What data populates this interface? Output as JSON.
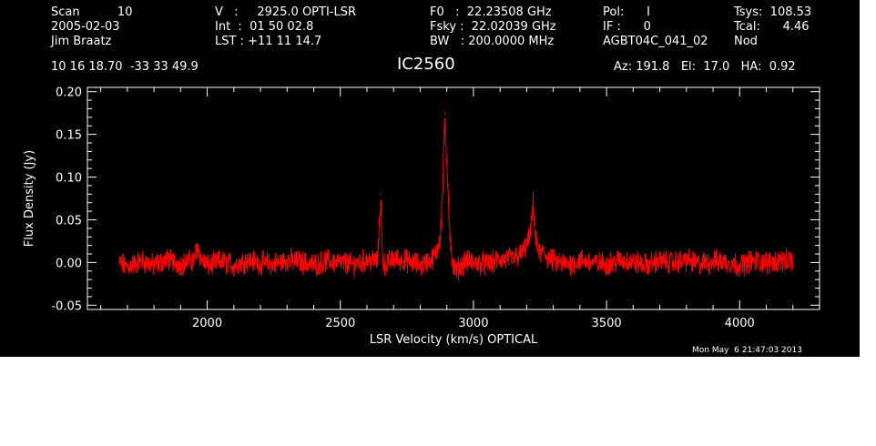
{
  "header": {
    "col1": {
      "scan": "Scan          10",
      "date": "2005-02-03",
      "observer": "Jim Braatz"
    },
    "col2": {
      "velocity": "V   :     2925.0 OPTI-LSR",
      "int": "Int  :  01 50 02.8",
      "lst": "LST : +11 11 14.7"
    },
    "col3": {
      "f0": "F0   :  22.23508 GHz",
      "fsky": "Fsky :  22.02039 GHz",
      "bw": "BW   : 200.0000 MHz"
    },
    "col4": {
      "pol": "Pol:      I",
      "if": "IF :      0",
      "project": "AGBT04C_041_02"
    },
    "col5": {
      "tsys": "Tsys:  108.53",
      "tcal": "Tcal:      4.46",
      "mode": "Nod"
    },
    "coords": "10 16 18.70  -33 33 49.9",
    "source": "IC2560",
    "azel": "Az: 191.8   El:  17.0   HA:  0.92",
    "timestamp": "Mon May  6 21:47:03 2013"
  },
  "colors": {
    "background": "#000000",
    "axes": "#ffffff",
    "series": "#ff0000"
  },
  "chart_data": {
    "type": "line",
    "title": "IC2560",
    "xlabel": "LSR Velocity (km/s) OPTICAL",
    "ylabel": "Flux Density (Jy)",
    "xlim": [
      1550,
      4300
    ],
    "ylim": [
      -0.055,
      0.205
    ],
    "xticks": [
      2000,
      2500,
      3000,
      3500,
      4000
    ],
    "xtick_labels": [
      "2000",
      "2500",
      "3000",
      "3500",
      "4000"
    ],
    "yticks": [
      -0.05,
      0.0,
      0.05,
      0.1,
      0.15,
      0.2
    ],
    "ytick_labels": [
      "-0.05",
      "0.00",
      "0.05",
      "0.10",
      "0.15",
      "0.20"
    ],
    "grid": false,
    "series": [
      {
        "x": [
          1670,
          1700,
          1750,
          1800,
          1850,
          1900,
          1950,
          1965,
          1975,
          2000,
          2050,
          2100,
          2150,
          2200,
          2250,
          2300,
          2350,
          2400,
          2450,
          2500,
          2550,
          2600,
          2640,
          2652,
          2658,
          2665,
          2700,
          2750,
          2800,
          2840,
          2860,
          2875,
          2885,
          2892,
          2898,
          2903,
          2908,
          2913,
          2918,
          2925,
          2935,
          2950,
          2970,
          3000,
          3050,
          3100,
          3150,
          3180,
          3200,
          3215,
          3225,
          3232,
          3240,
          3250,
          3265,
          3280,
          3300,
          3350,
          3400,
          3450,
          3500,
          3550,
          3600,
          3650,
          3700,
          3750,
          3800,
          3850,
          3900,
          3950,
          4000,
          4050,
          4100,
          4150,
          4200
        ],
        "y": [
          0.0,
          -0.005,
          0.002,
          -0.003,
          0.004,
          -0.002,
          0.003,
          0.02,
          0.005,
          -0.004,
          0.002,
          -0.003,
          0.003,
          0.0,
          -0.002,
          0.003,
          0.001,
          -0.003,
          0.002,
          0.0,
          -0.002,
          0.003,
          0.002,
          0.08,
          0.005,
          -0.002,
          0.004,
          0.002,
          -0.003,
          0.003,
          0.01,
          0.03,
          0.09,
          0.175,
          0.12,
          0.09,
          0.06,
          0.03,
          0.01,
          -0.005,
          -0.01,
          -0.004,
          0.002,
          0.0,
          -0.002,
          0.003,
          0.005,
          0.01,
          0.02,
          0.035,
          0.072,
          0.03,
          0.015,
          0.01,
          0.012,
          0.005,
          0.002,
          -0.002,
          0.003,
          0.0,
          -0.002,
          0.003,
          0.001,
          -0.003,
          0.002,
          0.0,
          0.003,
          -0.002,
          0.002,
          0.001,
          -0.003,
          0.002,
          0.0,
          0.003,
          0.001
        ]
      }
    ]
  }
}
